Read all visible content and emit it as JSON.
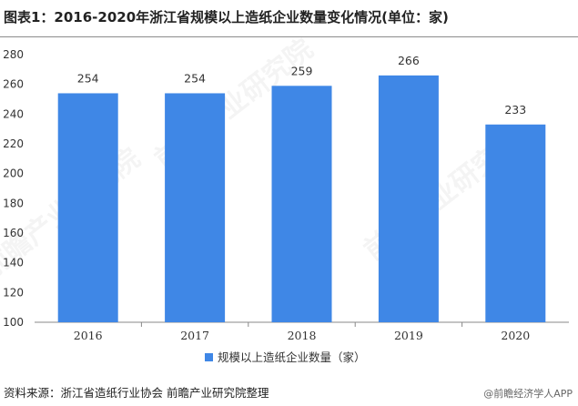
{
  "title": "图表1：2016-2020年浙江省规模以上造纸企业数量变化情况(单位：家)",
  "source": "资料来源：浙江省造纸行业协会 前瞻产业研究院整理",
  "brand": "@前瞻经济学人APP",
  "watermark": "前瞻产业研究院",
  "colors": {
    "bar": "#3f87e6",
    "axis": "#888888",
    "text": "#333333"
  },
  "chart_data": {
    "type": "bar",
    "categories": [
      "2016",
      "2017",
      "2018",
      "2019",
      "2020"
    ],
    "series": [
      {
        "name": "规模以上造纸企业数量（家）",
        "values": [
          254,
          254,
          259,
          266,
          233
        ]
      }
    ],
    "yticks": [
      100,
      120,
      140,
      160,
      180,
      200,
      220,
      240,
      260,
      280
    ],
    "ylim": [
      100,
      280
    ],
    "grid": false,
    "legend": "bottom"
  }
}
